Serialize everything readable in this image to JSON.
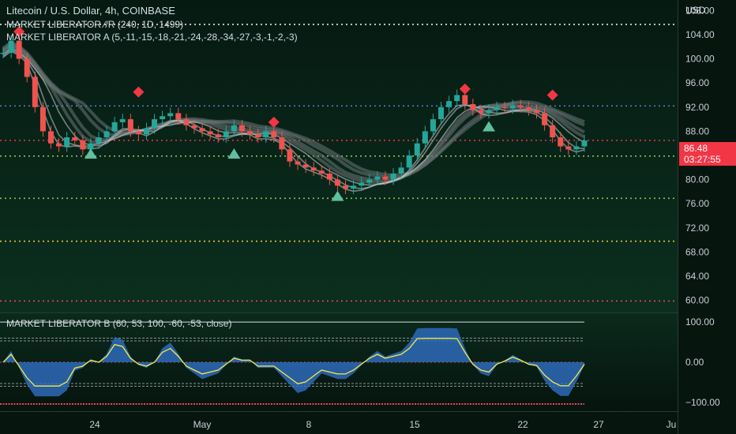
{
  "header": {
    "symbol_line": "Litecoin / U.S. Dollar, 4h, COINBASE",
    "indicator_sr": "MARKET LIBERATOR ⁄/R (240, 1D, 1499)",
    "indicator_a": "MARKET LIBERATOR A (5,-11,-15,-18,-21,-24,-28,-34,-27,-3,-1,-2,-3)",
    "indicator_b": "MARKET LIBERATOR B (60, 53, 100, -60, -53, close)",
    "currency": "USD"
  },
  "price_tag": {
    "price": "86.48",
    "countdown": "03:27:55"
  },
  "chart_data": [
    {
      "type": "candlestick",
      "title": "Litecoin / U.S. Dollar, 4h, COINBASE",
      "ylabel": "USD",
      "ylim": [
        58,
        110
      ],
      "y_ticks": [
        "108.00",
        "104.00",
        "100.00",
        "96.00",
        "92.00",
        "88.00",
        "84.00",
        "80.00",
        "76.00",
        "72.00",
        "68.00",
        "64.00",
        "60.00"
      ],
      "x_ticks": [
        "24",
        "May",
        "8",
        "15",
        "22",
        "27",
        "Ju"
      ],
      "last_price": 86.48,
      "horizontal_levels": [
        {
          "value": 105.7,
          "color": "#e8e8e8"
        },
        {
          "value": 92.2,
          "color": "#5b7bd6"
        },
        {
          "value": 86.5,
          "color": "#f23645"
        },
        {
          "value": 83.9,
          "color": "#8bc34a"
        },
        {
          "value": 76.9,
          "color": "#8bc34a"
        },
        {
          "value": 69.8,
          "color": "#e6c33a"
        },
        {
          "value": 59.9,
          "color": "#e94560"
        }
      ],
      "price_path": [
        101,
        103,
        100,
        97,
        92,
        88,
        86,
        85.5,
        87,
        86.5,
        85,
        86,
        87,
        88,
        89.5,
        90,
        88,
        87.5,
        88.5,
        90,
        90.5,
        91,
        90,
        89,
        88.5,
        88,
        87.5,
        87,
        88,
        89,
        88,
        87.5,
        87,
        88,
        87,
        85,
        83,
        82.5,
        82,
        81.5,
        81,
        80,
        79,
        78.5,
        79,
        79.5,
        80,
        80.5,
        80,
        81,
        82,
        84,
        86,
        88,
        90,
        92,
        93,
        94,
        92.5,
        91.5,
        91,
        91.5,
        92,
        91.8,
        92.3,
        92,
        91.5,
        91,
        89,
        87,
        85.5,
        85,
        85.5,
        86.48
      ],
      "sell_markers": [
        104.5,
        94.5,
        89.5,
        95.0,
        94.0
      ],
      "buy_markers": [
        84,
        84,
        77,
        88.5
      ]
    },
    {
      "type": "line",
      "title": "MARKET LIBERATOR B (60, 53, 100, -60, -53, close)",
      "ylim": [
        -120,
        120
      ],
      "y_ticks": [
        "100.00",
        "0.00",
        "−100.00"
      ],
      "levels": [
        100,
        60,
        53,
        0,
        -53,
        -60
      ]
    }
  ],
  "colors": {
    "bull": "#26a69a",
    "bear": "#ef5350",
    "sell_marker": "#f23645",
    "buy_marker": "#5fbf9f",
    "osc_fill": "#2f6fc4",
    "osc_line": "#f7e94a"
  }
}
